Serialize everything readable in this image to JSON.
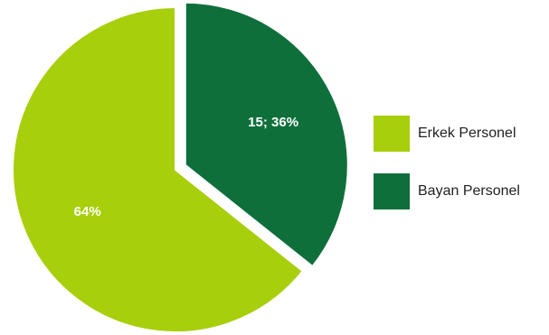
{
  "chart_data": {
    "type": "pie",
    "categories": [
      "Erkek Personel",
      "Bayan Personel"
    ],
    "values": [
      27,
      15
    ],
    "percentages": [
      64,
      36
    ],
    "data_labels": [
      "64%",
      "15; 36%"
    ],
    "colors": [
      "#a7cf0c",
      "#0f6f3b"
    ],
    "exploded": [
      false,
      true
    ],
    "legend_position": "right"
  },
  "legend": {
    "items": [
      {
        "label": "Erkek Personel",
        "color": "#a7cf0c"
      },
      {
        "label": "Bayan Personel",
        "color": "#0f6f3b"
      }
    ]
  }
}
